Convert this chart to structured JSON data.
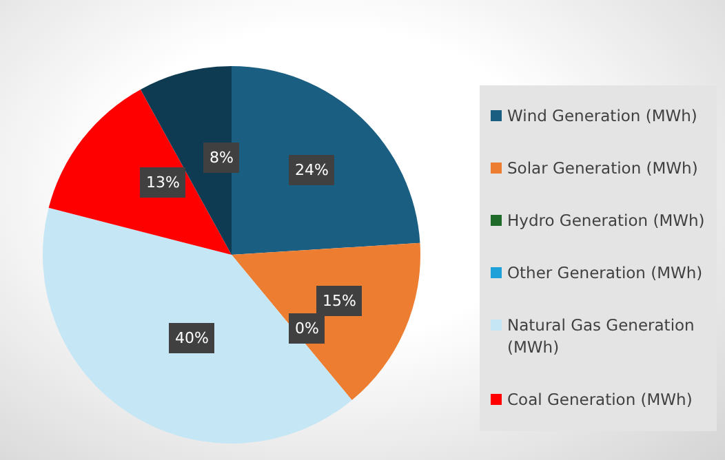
{
  "chart_data": {
    "type": "pie",
    "categories": [
      "Wind Generation (MWh)",
      "Solar Generation (MWh)",
      "Hydro Generation (MWh)",
      "Other Generation (MWh)",
      "Natural Gas Generation (MWh)",
      "Coal Generation (MWh)",
      null
    ],
    "values": [
      24,
      15,
      0,
      0,
      40,
      13,
      8
    ],
    "value_labels": [
      "24%",
      "15%",
      "0%",
      null,
      "40%",
      "13%",
      "8%"
    ],
    "colors": [
      "#1a5e82",
      "#ed7d31",
      "#1e6b2a",
      "#1ea0d8",
      "#c5e6f5",
      "#ff0000",
      "#0e3a52"
    ],
    "legend": "right"
  }
}
